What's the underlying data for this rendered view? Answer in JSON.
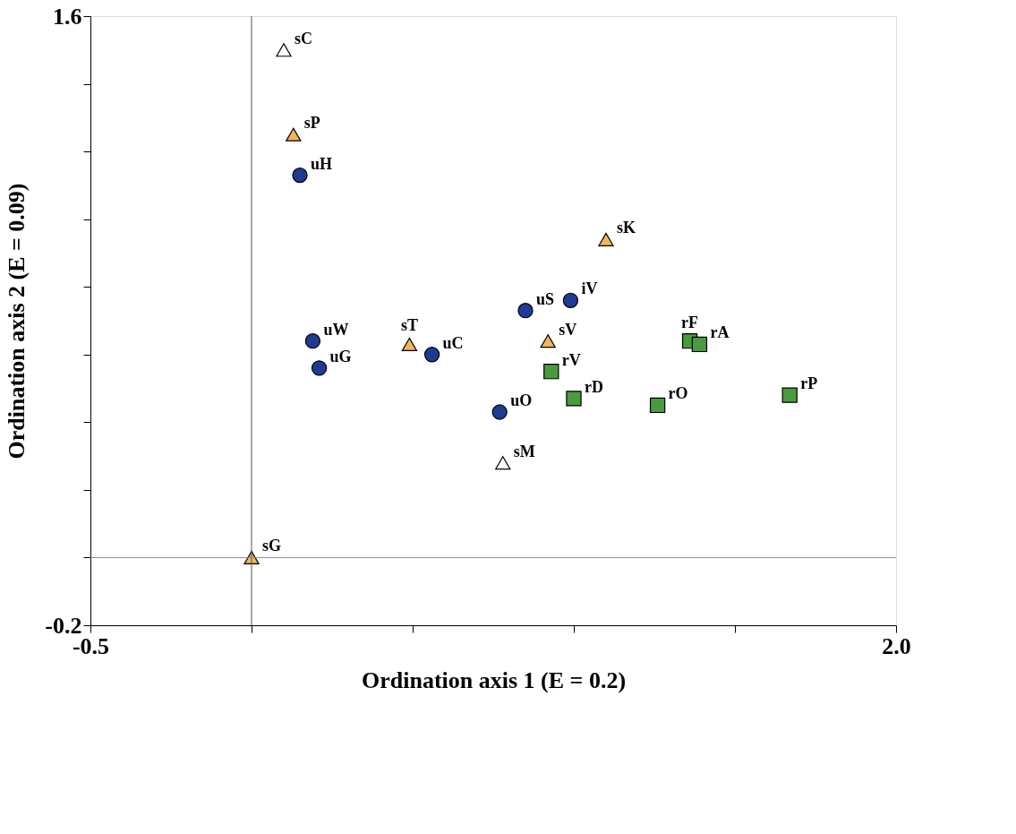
{
  "chart_data": {
    "type": "scatter",
    "xlabel": "Ordination axis 1 (E = 0.2)",
    "ylabel": "Ordination axis 2 (E = 0.09)",
    "xlim": [
      -0.5,
      2.0
    ],
    "xticks": [
      -0.5,
      {
        "value": 0,
        "label": null
      },
      {
        "value": 0.5,
        "label": null
      },
      {
        "value": 1.0,
        "label": null
      },
      {
        "value": 1.5,
        "label": null
      },
      {
        "value": 2.0,
        "label": "2.0"
      }
    ],
    "ylim": [
      -0.2,
      1.6
    ],
    "yticks": [
      {
        "value": -0.2,
        "label": "-0.2"
      },
      {
        "value": 0,
        "label": null
      },
      {
        "value": 0.2,
        "label": null
      },
      {
        "value": 0.4,
        "label": null
      },
      {
        "value": 0.6,
        "label": null
      },
      {
        "value": 0.8,
        "label": null
      },
      {
        "value": 1.0,
        "label": null
      },
      {
        "value": 1.2,
        "label": null
      },
      {
        "value": 1.4,
        "label": null
      },
      {
        "value": 1.6,
        "label": "1.6"
      }
    ],
    "grid": false,
    "ref_lines": [
      {
        "axis": "x",
        "value": 0,
        "color": "#555555"
      },
      {
        "axis": "y",
        "value": 0,
        "color": "#8a8a8a"
      }
    ],
    "series": [
      {
        "color": "#f0b65a",
        "marker": "triangle",
        "x": [
          0.13,
          1.1,
          0.49,
          0.92,
          0.0
        ],
        "values": [
          1.25,
          0.94,
          0.63,
          0.64,
          0.0
        ]
      },
      {
        "color": "#ffffff",
        "marker": "triangle",
        "x": [
          0.1,
          0.78
        ],
        "values": [
          1.5,
          0.28
        ]
      },
      {
        "color": "#1f3a93",
        "marker": "circle",
        "x": [
          0.15,
          0.85,
          0.99,
          0.19,
          0.56,
          0.21,
          0.77
        ],
        "values": [
          1.13,
          0.73,
          0.76,
          0.64,
          0.6,
          0.56,
          0.43
        ]
      },
      {
        "color": "#4a9a3f",
        "marker": "square",
        "x": [
          1.36,
          1.39,
          0.93,
          1.0,
          1.26,
          1.67
        ],
        "values": [
          0.64,
          0.63,
          0.55,
          0.47,
          0.45,
          0.48
        ]
      }
    ],
    "annotations": [
      {
        "text": "sP",
        "x": 0.13,
        "y": 1.25
      },
      {
        "text": "sK",
        "x": 1.1,
        "y": 0.94
      },
      {
        "text": "sT",
        "x": 0.49,
        "y": 0.63
      },
      {
        "text": "sV",
        "x": 0.92,
        "y": 0.64
      },
      {
        "text": "sG",
        "x": 0.0,
        "y": 0.0
      },
      {
        "text": "sC",
        "x": 0.1,
        "y": 1.5
      },
      {
        "text": "sM",
        "x": 0.78,
        "y": 0.28
      },
      {
        "text": "uH",
        "x": 0.15,
        "y": 1.13
      },
      {
        "text": "uS",
        "x": 0.85,
        "y": 0.73
      },
      {
        "text": "iV",
        "x": 0.99,
        "y": 0.76
      },
      {
        "text": "uW",
        "x": 0.19,
        "y": 0.64
      },
      {
        "text": "uC",
        "x": 0.56,
        "y": 0.6
      },
      {
        "text": "uG",
        "x": 0.21,
        "y": 0.56
      },
      {
        "text": "uO",
        "x": 0.77,
        "y": 0.43
      },
      {
        "text": "rF",
        "x": 1.36,
        "y": 0.64
      },
      {
        "text": "rA",
        "x": 1.39,
        "y": 0.63
      },
      {
        "text": "rV",
        "x": 0.93,
        "y": 0.55
      },
      {
        "text": "rD",
        "x": 1.0,
        "y": 0.47
      },
      {
        "text": "rO",
        "x": 1.26,
        "y": 0.45
      },
      {
        "text": "rP",
        "x": 1.67,
        "y": 0.48
      }
    ]
  }
}
